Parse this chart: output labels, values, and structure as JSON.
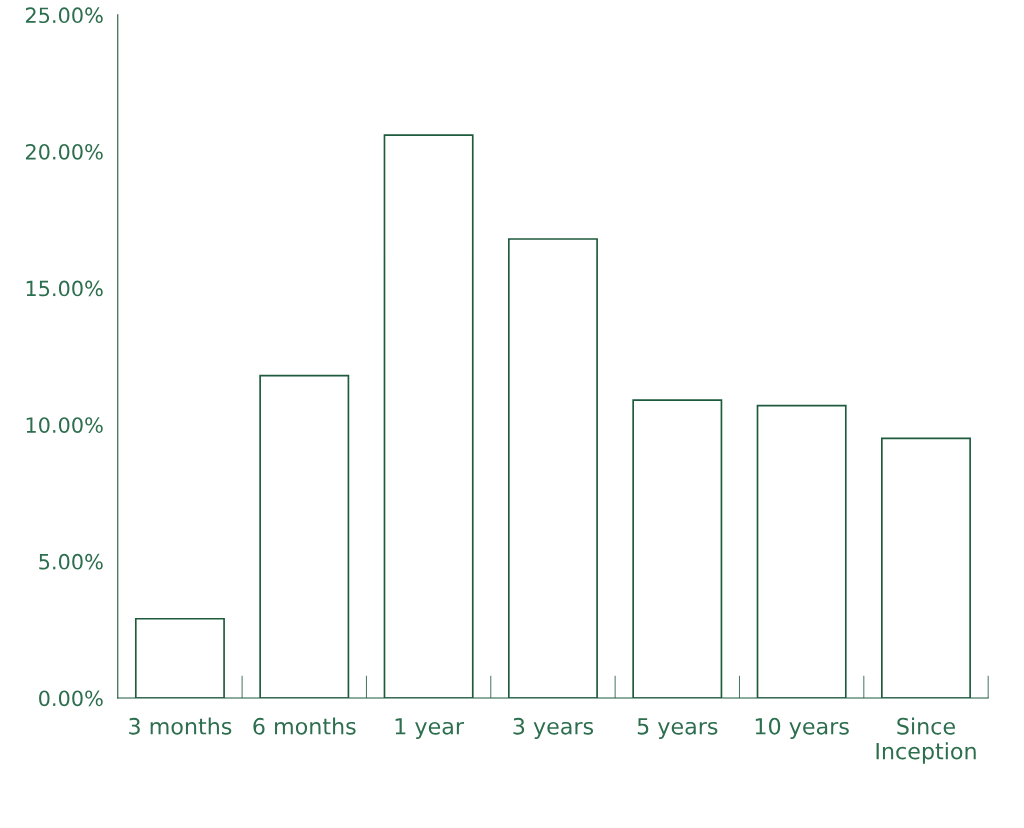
{
  "chart_data": {
    "type": "bar",
    "categories": [
      "3 months",
      "6 months",
      "1 year",
      "3 years",
      "5 years",
      "10 years",
      "Since\nInception"
    ],
    "values": [
      2.9,
      11.8,
      20.6,
      16.8,
      10.9,
      10.7,
      9.5
    ],
    "color": "#ffffff",
    "ylim": [
      0,
      25
    ],
    "yticks": [
      {
        "value": 0,
        "label": "0.00%"
      },
      {
        "value": 5,
        "label": "5.00%"
      },
      {
        "value": 10,
        "label": "10.00%"
      },
      {
        "value": 15,
        "label": "15.00%"
      },
      {
        "value": 20,
        "label": "20.00%"
      },
      {
        "value": 25,
        "label": "25.00%"
      }
    ],
    "grid": false
  }
}
